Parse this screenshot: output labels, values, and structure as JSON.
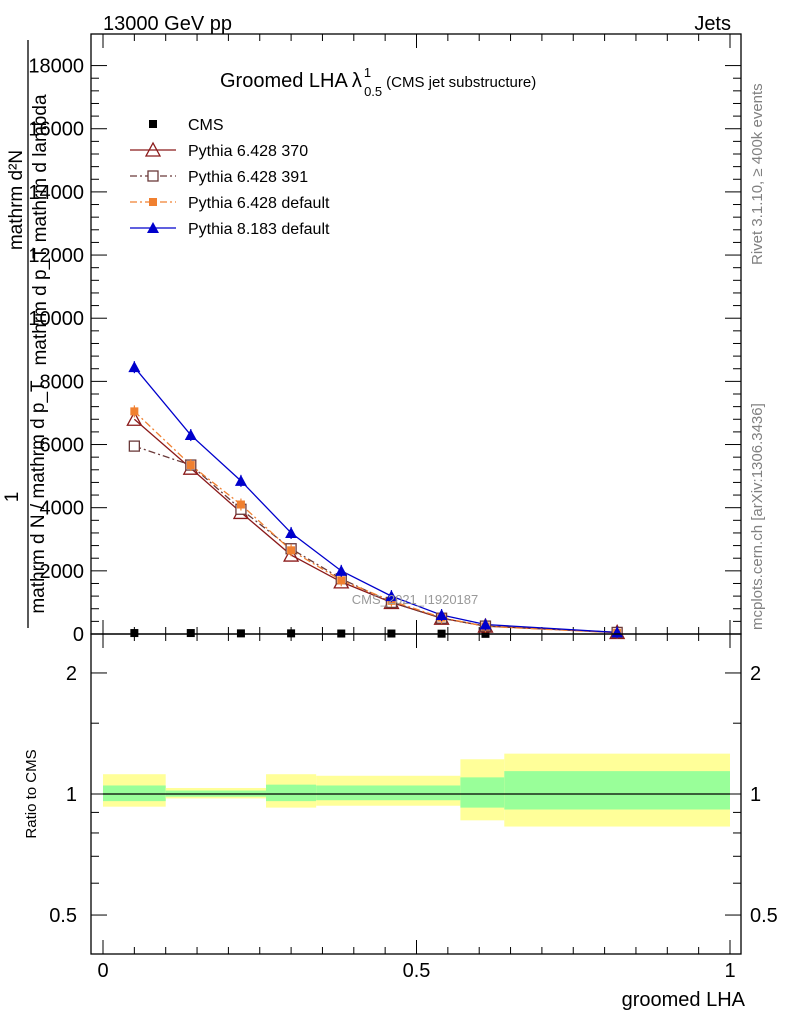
{
  "header": {
    "left": "13000 GeV pp",
    "right": "Jets"
  },
  "side_labels": {
    "rivet": "Rivet 3.1.10, ≥ 400k events",
    "mcplots": "mcplots.cern.ch [arXiv:1306.3436]"
  },
  "watermark": "CMS_2021_I1920187",
  "colors": {
    "cms": "#000000",
    "p370": "#8b1a1a",
    "p391": "#6b3a3a",
    "p6def": "#f08030",
    "p8def": "#0000cc",
    "band_inner": "#99ff99",
    "band_outer": "#ffff99"
  },
  "chart_data": [
    {
      "type": "line",
      "title_main": "Groomed LHA",
      "title_lambda": "λ",
      "title_sup": "1",
      "title_sub": "0.5",
      "title_suffix": "(CMS jet substructure)",
      "ylabel_top": "mathrm d²N",
      "ylabel_top2": "mathrm d p_T mathrm d lambda",
      "ylabel_one": "1",
      "ylabel_bottom": "mathrm d N / mathrm d p_T",
      "ylim": [
        0,
        19000
      ],
      "yticks": [
        0,
        2000,
        4000,
        6000,
        8000,
        10000,
        12000,
        14000,
        16000,
        18000
      ],
      "ytick_labels": [
        "0",
        "2000",
        "4000",
        "6000",
        "8000",
        "10000",
        "12000",
        "14000",
        "16000",
        "18000"
      ],
      "xlim": [
        0,
        1
      ],
      "x": [
        0.05,
        0.14,
        0.22,
        0.3,
        0.38,
        0.46,
        0.54,
        0.61,
        0.82
      ],
      "series": [
        {
          "name": "CMS",
          "key": "cms",
          "marker": "square",
          "values": [
            30,
            30,
            20,
            20,
            15,
            15,
            10,
            5,
            2
          ]
        },
        {
          "name": "Pythia 6.428 370",
          "key": "p370",
          "marker": "triangle-open",
          "dash": "",
          "values": [
            6800,
            5250,
            3850,
            2500,
            1650,
            1000,
            500,
            250,
            50
          ]
        },
        {
          "name": "Pythia 6.428 391",
          "key": "p391",
          "marker": "square-open",
          "dash": "7,3,2,3",
          "values": [
            5950,
            5350,
            3950,
            2700,
            1750,
            1000,
            500,
            250,
            50
          ]
        },
        {
          "name": "Pythia 6.428 default",
          "key": "p6def",
          "marker": "square",
          "dash": "7,3,2,3",
          "values": [
            7050,
            5350,
            4100,
            2650,
            1700,
            1050,
            520,
            240,
            40
          ]
        },
        {
          "name": "Pythia 8.183 default",
          "key": "p8def",
          "marker": "triangle",
          "dash": "",
          "values": [
            8450,
            6300,
            4850,
            3200,
            2000,
            1200,
            600,
            300,
            50
          ]
        }
      ]
    },
    {
      "type": "area",
      "ylabel": "Ratio to CMS",
      "xlabel": "groomed LHA",
      "xlim": [
        0,
        1
      ],
      "ylim": [
        0.4,
        2.5
      ],
      "log_y": true,
      "yticks": [
        0.5,
        1,
        2
      ],
      "ytick_labels": [
        "0.5",
        "1",
        "2"
      ],
      "xticks": [
        0,
        0.5,
        1
      ],
      "xtick_labels": [
        "0",
        "0.5",
        "1"
      ],
      "bins": [
        {
          "x0": 0.0,
          "x1": 0.1,
          "inner": [
            0.96,
            1.05
          ],
          "outer": [
            0.93,
            1.12
          ]
        },
        {
          "x0": 0.1,
          "x1": 0.26,
          "inner": [
            0.985,
            1.02
          ],
          "outer": [
            0.975,
            1.035
          ]
        },
        {
          "x0": 0.26,
          "x1": 0.34,
          "inner": [
            0.96,
            1.055
          ],
          "outer": [
            0.925,
            1.12
          ]
        },
        {
          "x0": 0.34,
          "x1": 0.57,
          "inner": [
            0.965,
            1.05
          ],
          "outer": [
            0.935,
            1.11
          ]
        },
        {
          "x0": 0.57,
          "x1": 0.64,
          "inner": [
            0.925,
            1.1
          ],
          "outer": [
            0.86,
            1.22
          ]
        },
        {
          "x0": 0.64,
          "x1": 1.0,
          "inner": [
            0.915,
            1.14
          ],
          "outer": [
            0.83,
            1.26
          ]
        }
      ]
    }
  ]
}
